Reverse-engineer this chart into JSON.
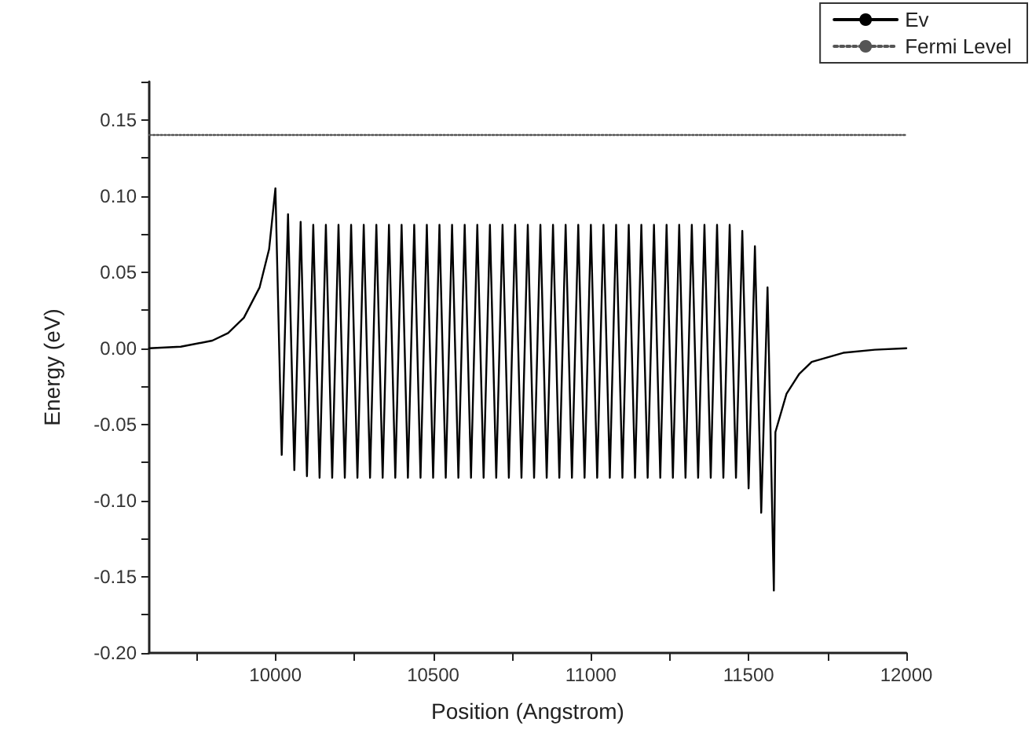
{
  "chart_data": {
    "type": "line",
    "xlabel": "Position (Angstrom)",
    "ylabel": "Energy (eV)",
    "xlim": [
      9600,
      12000
    ],
    "xticks": [
      {
        "value": 9750,
        "label": null
      },
      10000,
      {
        "value": 10250,
        "label": null
      },
      10500,
      {
        "value": 10750,
        "label": null
      },
      11000,
      {
        "value": 11250,
        "label": null
      },
      11500,
      {
        "value": 11750,
        "label": null
      },
      12000
    ],
    "ylim": [
      -0.2,
      0.175
    ],
    "yticks": [
      {
        "value": -0.2,
        "label": "-0.20"
      },
      {
        "value": -0.175,
        "label": null
      },
      {
        "value": -0.15,
        "label": "-0.15"
      },
      {
        "value": -0.125,
        "label": null
      },
      {
        "value": -0.1,
        "label": "-0.10"
      },
      {
        "value": -0.075,
        "label": null
      },
      {
        "value": -0.05,
        "label": "-0.05"
      },
      {
        "value": -0.025,
        "label": null
      },
      {
        "value": 0,
        "label": "0.00"
      },
      {
        "value": 0.025,
        "label": null
      },
      {
        "value": 0.05,
        "label": "0.05"
      },
      {
        "value": 0.075,
        "label": null
      },
      {
        "value": 0.1,
        "label": "0.10"
      },
      {
        "value": 0.125,
        "label": null
      },
      {
        "value": 0.15,
        "label": "0.15"
      },
      {
        "value": 0.175,
        "label": null
      }
    ],
    "grid": false,
    "legend": "top right",
    "marker": "none",
    "series": [
      {
        "name": "Ev",
        "color": "#000000",
        "line_style": "solid",
        "x": [
          9600,
          9700,
          9800,
          9850,
          9900,
          9950,
          9980,
          10000,
          10020,
          10040,
          10060,
          10080,
          10100,
          10120,
          10140,
          10160,
          10180,
          10200,
          10220,
          10240,
          10260,
          10280,
          10300,
          10320,
          10340,
          10360,
          10380,
          10400,
          10420,
          10440,
          10460,
          10480,
          10500,
          10520,
          10540,
          10560,
          10580,
          10600,
          10620,
          10640,
          10660,
          10680,
          10700,
          10720,
          10740,
          10760,
          10780,
          10800,
          10820,
          10840,
          10860,
          10880,
          10900,
          10920,
          10940,
          10960,
          10980,
          11000,
          11020,
          11040,
          11060,
          11080,
          11100,
          11120,
          11140,
          11160,
          11180,
          11200,
          11220,
          11240,
          11260,
          11280,
          11300,
          11320,
          11340,
          11360,
          11380,
          11400,
          11420,
          11440,
          11460,
          11480,
          11500,
          11520,
          11540,
          11560,
          11580,
          11585,
          11620,
          11660,
          11700,
          11800,
          11900,
          12000
        ],
        "values": [
          0,
          0.001,
          0.005,
          0.01,
          0.02,
          0.04,
          0.065,
          0.105,
          -0.07,
          0.088,
          -0.08,
          0.083,
          -0.084,
          0.081,
          -0.085,
          0.081,
          -0.085,
          0.081,
          -0.085,
          0.081,
          -0.085,
          0.081,
          -0.085,
          0.081,
          -0.085,
          0.081,
          -0.085,
          0.081,
          -0.085,
          0.081,
          -0.085,
          0.081,
          -0.085,
          0.081,
          -0.085,
          0.081,
          -0.085,
          0.081,
          -0.085,
          0.081,
          -0.085,
          0.081,
          -0.085,
          0.081,
          -0.085,
          0.081,
          -0.085,
          0.081,
          -0.085,
          0.081,
          -0.085,
          0.081,
          -0.085,
          0.081,
          -0.085,
          0.081,
          -0.085,
          0.081,
          -0.085,
          0.081,
          -0.085,
          0.081,
          -0.085,
          0.081,
          -0.085,
          0.081,
          -0.085,
          0.081,
          -0.085,
          0.081,
          -0.085,
          0.081,
          -0.085,
          0.081,
          -0.085,
          0.081,
          -0.085,
          0.081,
          -0.085,
          0.081,
          -0.085,
          0.077,
          -0.092,
          0.067,
          -0.108,
          0.04,
          -0.159,
          -0.055,
          -0.03,
          -0.017,
          -0.009,
          -0.003,
          -0.001,
          0
        ]
      },
      {
        "name": "Fermi Level",
        "color": "#555555",
        "line_style": "dotted",
        "x": [
          9600,
          12000
        ],
        "values": [
          0.14,
          0.14
        ]
      }
    ]
  }
}
